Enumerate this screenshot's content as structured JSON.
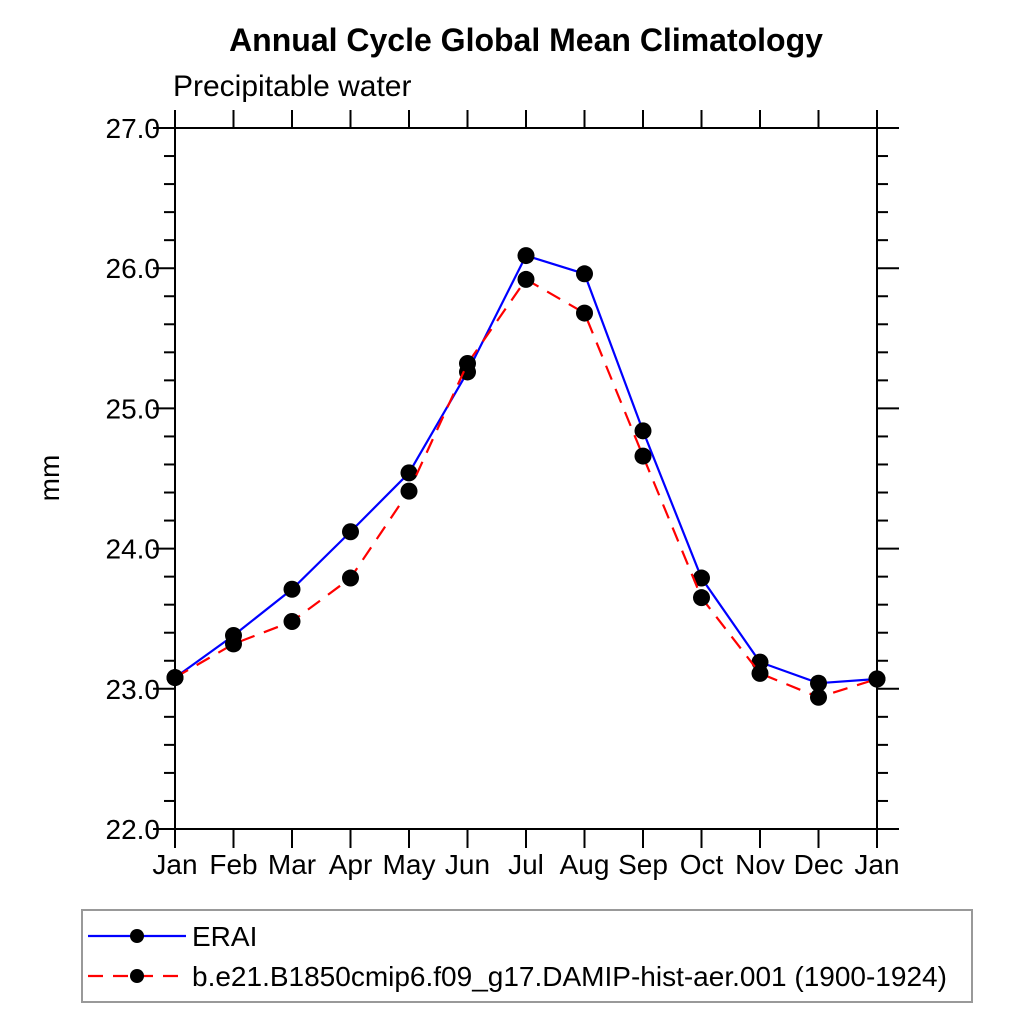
{
  "title": "Annual Cycle Global Mean Climatology",
  "subtitle": "Precipitable water",
  "y_axis_label": "mm",
  "colors": {
    "erai_line": "#0000ff",
    "model_line": "#ff0000",
    "marker": "#000000",
    "axis": "#000000",
    "legend_border": "#999999"
  },
  "chart_data": {
    "type": "line",
    "categories": [
      "Jan",
      "Feb",
      "Mar",
      "Apr",
      "May",
      "Jun",
      "Jul",
      "Aug",
      "Sep",
      "Oct",
      "Nov",
      "Dec",
      "Jan"
    ],
    "ylim": [
      22.0,
      27.0
    ],
    "ytick_major": [
      22.0,
      23.0,
      24.0,
      25.0,
      26.0,
      27.0
    ],
    "ytick_labels": [
      "22.0",
      "23.0",
      "24.0",
      "25.0",
      "26.0",
      "27.0"
    ],
    "ytick_minor_step": 0.2,
    "grid": false,
    "legend_position": "bottom",
    "xlabel": "",
    "ylabel": "mm",
    "series": [
      {
        "name": "ERAI",
        "color": "#0000ff",
        "style": "solid",
        "marker": "circle",
        "marker_color": "#000000",
        "values": [
          23.08,
          23.38,
          23.71,
          24.12,
          24.54,
          25.26,
          26.09,
          25.96,
          24.84,
          23.79,
          23.19,
          23.04,
          23.07
        ]
      },
      {
        "name": "b.e21.B1850cmip6.f09_g17.DAMIP-hist-aer.001 (1900-1924)",
        "color": "#ff0000",
        "style": "dashed",
        "marker": "circle",
        "marker_color": "#000000",
        "values": [
          23.08,
          23.32,
          23.48,
          23.79,
          24.41,
          25.32,
          25.92,
          25.68,
          24.66,
          23.65,
          23.11,
          22.94,
          23.07
        ]
      }
    ]
  }
}
